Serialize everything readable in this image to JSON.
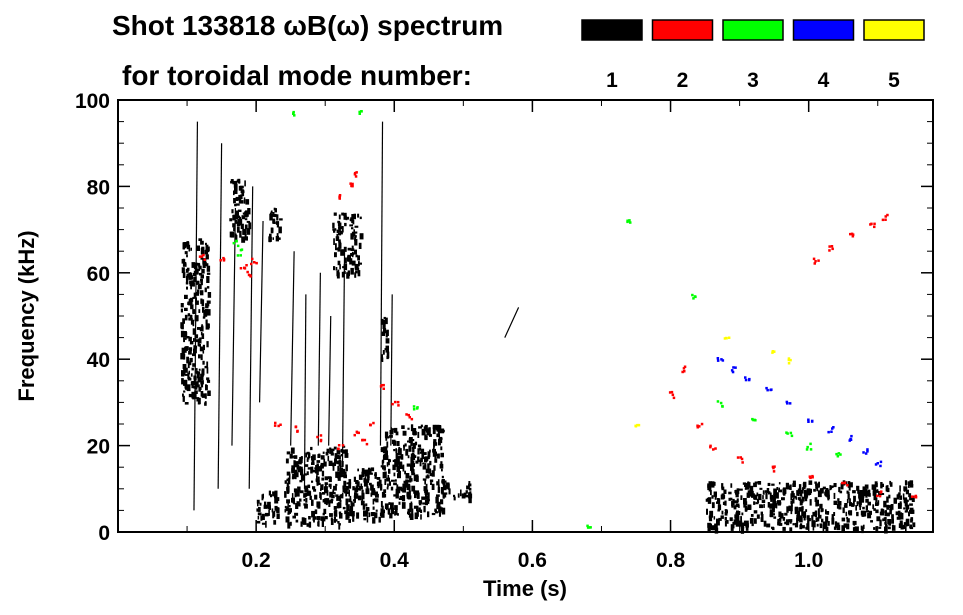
{
  "header": {
    "title_line1": "Shot 133818 ωB(ω) spectrum",
    "title_line2": "for toroidal mode number:"
  },
  "chart_data": {
    "type": "scatter",
    "title": "Shot 133818 ωB(ω) spectrum",
    "subtitle": "for toroidal mode number:",
    "xlabel": "Time (s)",
    "ylabel": "Frequency (kHz)",
    "xlim": [
      0.0,
      1.18
    ],
    "ylim": [
      0,
      100
    ],
    "x_ticks": [
      "0.2",
      "0.4",
      "0.6",
      "0.8",
      "1.0"
    ],
    "x_tick_values": [
      0.2,
      0.4,
      0.6,
      0.8,
      1.0
    ],
    "y_ticks": [
      "0",
      "20",
      "40",
      "60",
      "80",
      "100"
    ],
    "y_tick_values": [
      0,
      20,
      40,
      60,
      80,
      100
    ],
    "legend_placement": "top-right",
    "legend": [
      {
        "label": "1",
        "color": "#000000"
      },
      {
        "label": "2",
        "color": "#ff0000"
      },
      {
        "label": "3",
        "color": "#00ff00"
      },
      {
        "label": "4",
        "color": "#0000ff"
      },
      {
        "label": "5",
        "color": "#ffff00"
      }
    ],
    "series": [
      {
        "name": "1",
        "color": "#000000",
        "regions": [
          {
            "t": [
              0.09,
              0.13
            ],
            "f": [
              30,
              68
            ]
          },
          {
            "t": [
              0.16,
              0.19
            ],
            "f": [
              68,
              82
            ]
          },
          {
            "t": [
              0.2,
              0.23
            ],
            "f": [
              2,
              10
            ]
          },
          {
            "t": [
              0.215,
              0.235
            ],
            "f": [
              68,
              76
            ]
          },
          {
            "t": [
              0.24,
              0.33
            ],
            "f": [
              2,
              20
            ]
          },
          {
            "t": [
              0.31,
              0.35
            ],
            "f": [
              60,
              74
            ]
          },
          {
            "t": [
              0.33,
              0.38
            ],
            "f": [
              3,
              15
            ]
          },
          {
            "t": [
              0.38,
              0.47
            ],
            "f": [
              4,
              25
            ]
          },
          {
            "t": [
              0.38,
              0.39
            ],
            "f": [
              40,
              50
            ]
          },
          {
            "t": [
              0.46,
              0.51
            ],
            "f": [
              8,
              12
            ]
          },
          {
            "t": [
              0.85,
              1.15
            ],
            "f": [
              1,
              12
            ]
          }
        ],
        "lines": [
          {
            "t": [
              0.11,
              0.115
            ],
            "f": [
              5,
              95
            ]
          },
          {
            "t": [
              0.145,
              0.15
            ],
            "f": [
              10,
              90
            ]
          },
          {
            "t": [
              0.165,
              0.17
            ],
            "f": [
              20,
              75
            ]
          },
          {
            "t": [
              0.19,
              0.195
            ],
            "f": [
              10,
              80
            ]
          },
          {
            "t": [
              0.205,
              0.21
            ],
            "f": [
              30,
              72
            ]
          },
          {
            "t": [
              0.25,
              0.255
            ],
            "f": [
              20,
              65
            ]
          },
          {
            "t": [
              0.27,
              0.272
            ],
            "f": [
              10,
              55
            ]
          },
          {
            "t": [
              0.29,
              0.293
            ],
            "f": [
              20,
              60
            ]
          },
          {
            "t": [
              0.305,
              0.308
            ],
            "f": [
              20,
              50
            ]
          },
          {
            "t": [
              0.325,
              0.328
            ],
            "f": [
              15,
              65
            ]
          },
          {
            "t": [
              0.38,
              0.383
            ],
            "f": [
              20,
              95
            ]
          },
          {
            "t": [
              0.395,
              0.397
            ],
            "f": [
              20,
              55
            ]
          },
          {
            "t": [
              0.56,
              0.58
            ],
            "f": [
              45,
              52
            ]
          }
        ]
      },
      {
        "name": "2",
        "color": "#ff0000",
        "points": [
          [
            0.12,
            64
          ],
          [
            0.15,
            63
          ],
          [
            0.18,
            62
          ],
          [
            0.19,
            60
          ],
          [
            0.195,
            63
          ],
          [
            0.23,
            25
          ],
          [
            0.26,
            24
          ],
          [
            0.29,
            22
          ],
          [
            0.32,
            20
          ],
          [
            0.345,
            23
          ],
          [
            0.355,
            21
          ],
          [
            0.365,
            25
          ],
          [
            0.38,
            34
          ],
          [
            0.4,
            30
          ],
          [
            0.42,
            27
          ],
          [
            0.32,
            78
          ],
          [
            0.335,
            81
          ],
          [
            0.345,
            83
          ],
          [
            0.8,
            32
          ],
          [
            0.82,
            38
          ],
          [
            0.84,
            25
          ],
          [
            0.86,
            20
          ],
          [
            0.9,
            17
          ],
          [
            0.95,
            15
          ],
          [
            1.0,
            13
          ],
          [
            1.05,
            11
          ],
          [
            1.1,
            9
          ],
          [
            1.15,
            8
          ],
          [
            1.01,
            63
          ],
          [
            1.03,
            66
          ],
          [
            1.06,
            69
          ],
          [
            1.09,
            71
          ],
          [
            1.11,
            73
          ]
        ]
      },
      {
        "name": "3",
        "color": "#00ff00",
        "points": [
          [
            0.17,
            67
          ],
          [
            0.175,
            65
          ],
          [
            0.25,
            97
          ],
          [
            0.35,
            97
          ],
          [
            0.43,
            29
          ],
          [
            0.74,
            72
          ],
          [
            0.83,
            55
          ],
          [
            0.87,
            30
          ],
          [
            0.92,
            26
          ],
          [
            0.97,
            23
          ],
          [
            1.0,
            20
          ],
          [
            1.04,
            18
          ],
          [
            0.68,
            2
          ]
        ]
      },
      {
        "name": "4",
        "color": "#0000ff",
        "points": [
          [
            0.87,
            40
          ],
          [
            0.89,
            38
          ],
          [
            0.91,
            36
          ],
          [
            0.94,
            33
          ],
          [
            0.97,
            30
          ],
          [
            1.0,
            26
          ],
          [
            1.03,
            24
          ],
          [
            1.06,
            22
          ],
          [
            1.08,
            19
          ],
          [
            1.1,
            16
          ]
        ]
      },
      {
        "name": "5",
        "color": "#ffff00",
        "points": [
          [
            0.88,
            45
          ],
          [
            0.95,
            42
          ],
          [
            0.97,
            40
          ],
          [
            0.75,
            25
          ]
        ]
      }
    ]
  }
}
